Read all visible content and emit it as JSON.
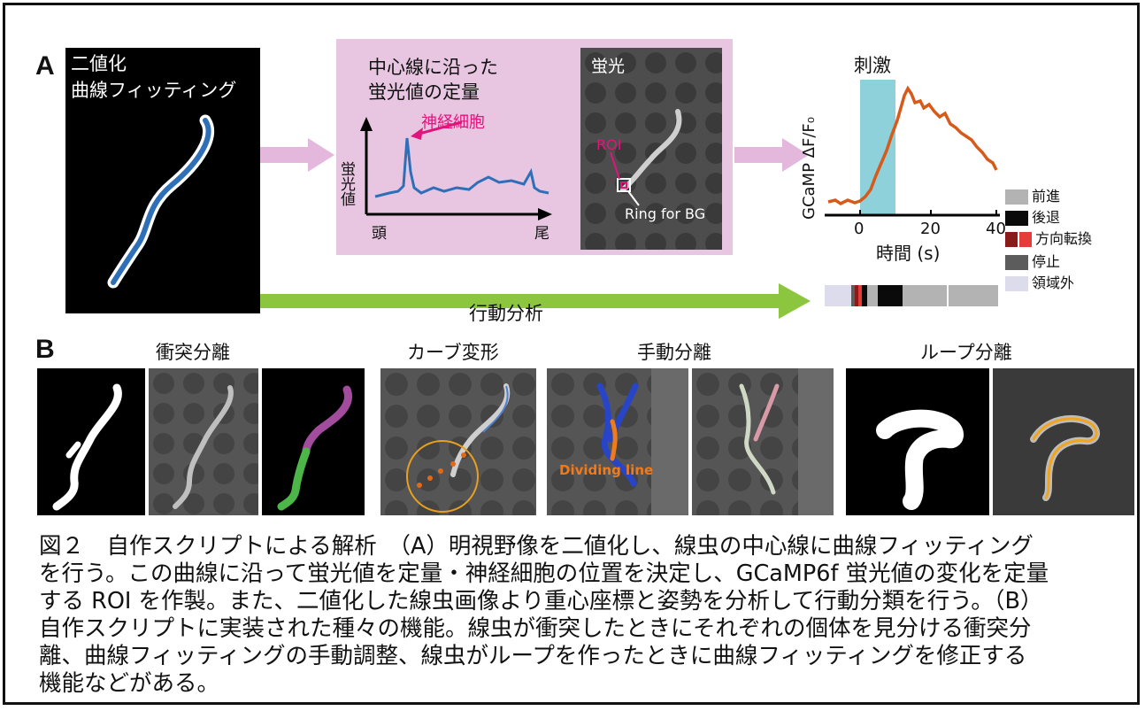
{
  "panel_a": {
    "letter": "A",
    "binarize_title": [
      "二値化",
      "曲線フィッティング"
    ],
    "quant_title": [
      "中心線に沿った",
      "蛍光値の定量"
    ],
    "quant_ylabel": "蛍光値",
    "quant_head": "頭",
    "quant_tail": "尾",
    "neuron_label": "神経細胞",
    "fluor_title": "蛍光",
    "roi_label": "ROI",
    "ring_label": "Ring for BG",
    "stim_label": "刺激",
    "gcamp_ylabel": "GCaMP ΔF/F₀",
    "time_ticks": [
      "0",
      "20",
      "40"
    ],
    "time_xlabel": "時間 (s)",
    "behavior_arrow_label": "行動分析",
    "legend": [
      {
        "label": "前進",
        "color": "#b3b3b3"
      },
      {
        "label": "後退",
        "color": "#0a0a0a"
      },
      {
        "label": "方向転換",
        "color": "#8b1a1a",
        "color2": "#e43b3b"
      },
      {
        "label": "停止",
        "color": "#5c5c5c"
      },
      {
        "label": "領域外",
        "color": "#dcdcec"
      }
    ]
  },
  "panel_b": {
    "letter": "B",
    "collision_title": "衝突分離",
    "curve_title": "カーブ変形",
    "manual_title": "手動分離",
    "dividing_label": "Dividing line",
    "loop_title": "ループ分離"
  },
  "caption": [
    "図２　自作スクリプトによる解析　（A）明視野像を二値化し、線虫の中心線に曲線フィッティング",
    "を行う。この曲線に沿って蛍光値を定量・神経細胞の位置を決定し、GCaMP6f 蛍光値の変化を定量",
    "する ROI を作製。また、二値化した線虫画像より重心座標と姿勢を分析して行動分類を行う。（B）",
    "自作スクリプトに実装された種々の機能。線虫が衝突したときにそれぞれの個体を見分ける衝突分",
    "離、曲線フィッティングの手動調整、線虫がループを作ったときに曲線フィッティングを修正する",
    "機能などがある。"
  ]
}
